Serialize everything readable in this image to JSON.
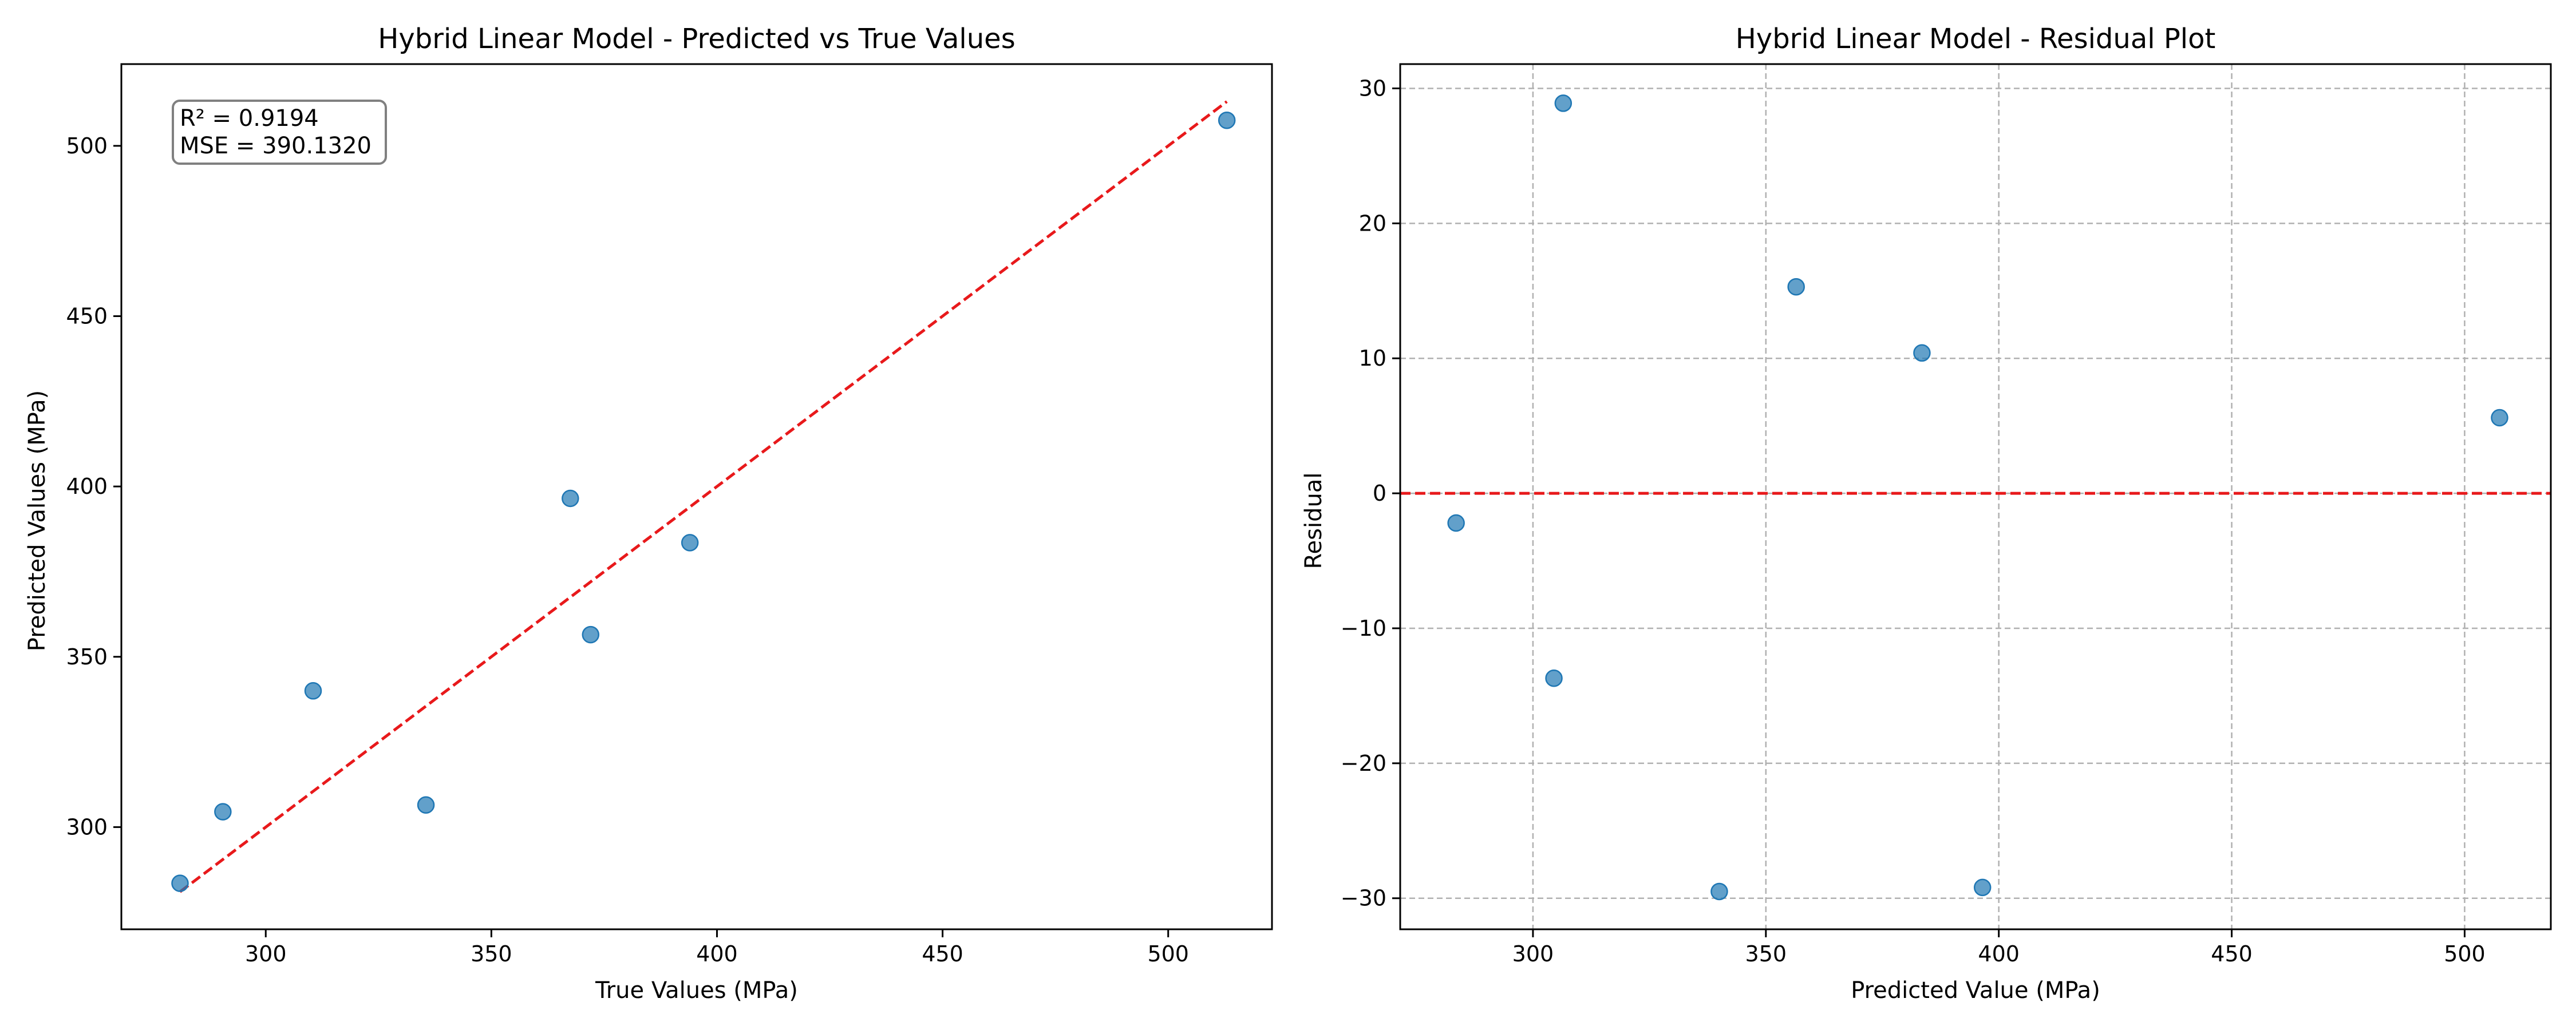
{
  "chart_data": [
    {
      "type": "scatter",
      "title": "Hybrid Linear Model - Predicted vs True Values",
      "xlabel": "True Values (MPa)",
      "ylabel": "Predicted Values (MPa)",
      "xlim": [
        268,
        523
      ],
      "ylim": [
        270,
        524
      ],
      "xticks": [
        300,
        350,
        400,
        450,
        500
      ],
      "yticks": [
        300,
        350,
        400,
        450,
        500
      ],
      "grid": false,
      "point_color": "#1f77b4",
      "reference_line": {
        "x": [
          281,
          513
        ],
        "y": [
          281,
          513
        ],
        "color": "#e8191b",
        "style": "dashed"
      },
      "annotation": [
        "R² = 0.9194",
        "MSE = 390.1320"
      ],
      "points": [
        {
          "x": 281,
          "y": 283.5
        },
        {
          "x": 290.5,
          "y": 304.5
        },
        {
          "x": 310.5,
          "y": 340
        },
        {
          "x": 335.5,
          "y": 306.5
        },
        {
          "x": 367.5,
          "y": 396.5
        },
        {
          "x": 372,
          "y": 356.5
        },
        {
          "x": 394,
          "y": 383.5
        },
        {
          "x": 513,
          "y": 507.5
        }
      ]
    },
    {
      "type": "scatter",
      "title": "Hybrid Linear Model - Residual Plot",
      "xlabel": "Predicted Value (MPa)",
      "ylabel": "Residual",
      "xlim": [
        271.5,
        518.5
      ],
      "ylim": [
        -32.3,
        31.8
      ],
      "xticks": [
        300,
        350,
        400,
        450,
        500
      ],
      "yticks": [
        -30,
        -20,
        -10,
        0,
        10,
        20,
        30
      ],
      "grid": true,
      "point_color": "#1f77b4",
      "zero_line": {
        "y": 0,
        "color": "#e8191b",
        "style": "dashed"
      },
      "points": [
        {
          "x": 283.5,
          "y": -2.2
        },
        {
          "x": 304.5,
          "y": -13.7
        },
        {
          "x": 306.5,
          "y": 28.9
        },
        {
          "x": 340,
          "y": -29.5
        },
        {
          "x": 356.5,
          "y": 15.3
        },
        {
          "x": 383.5,
          "y": 10.4
        },
        {
          "x": 396.5,
          "y": -29.2
        },
        {
          "x": 507.5,
          "y": 5.6
        }
      ]
    }
  ]
}
